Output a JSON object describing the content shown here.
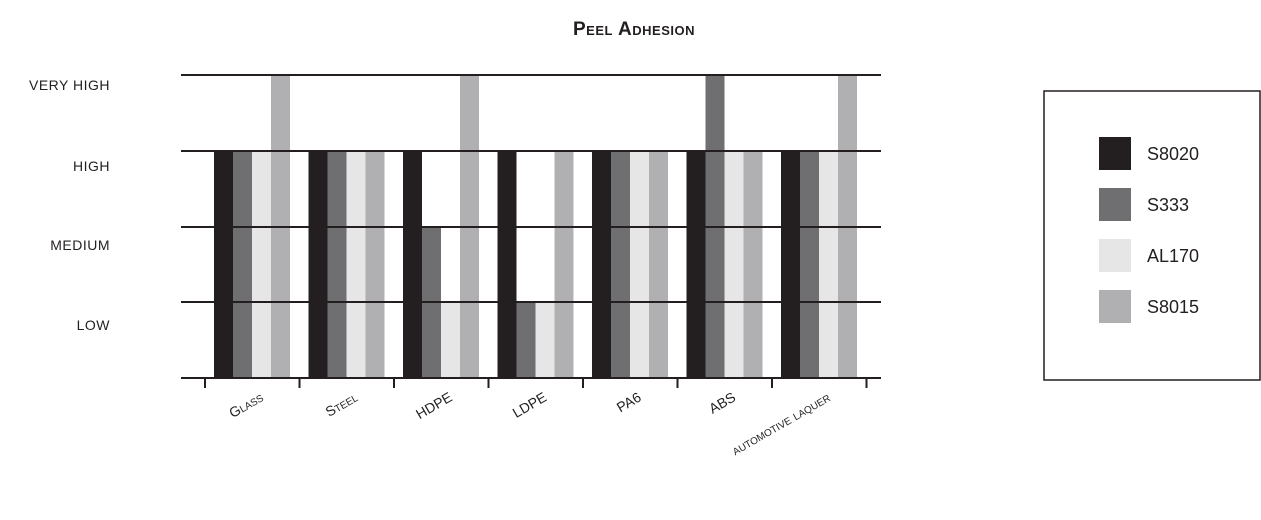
{
  "chart_data": {
    "type": "bar",
    "title": "Peel Adhesion",
    "xlabel": "",
    "ylabel": "",
    "y_levels": [
      "LOW",
      "MEDIUM",
      "HIGH",
      "VERY HIGH"
    ],
    "ylim": [
      0,
      4
    ],
    "categories": [
      "Glass",
      "Steel",
      "HDPE",
      "LDPE",
      "PA6",
      "ABS",
      "automotive laquer"
    ],
    "series": [
      {
        "name": "S8020",
        "color": "#231f20",
        "values": [
          3,
          3,
          3,
          3,
          3,
          3,
          3
        ]
      },
      {
        "name": "S333",
        "color": "#6f6f71",
        "values": [
          3,
          3,
          2,
          1,
          3,
          4,
          3
        ]
      },
      {
        "name": "AL170",
        "color": "#e6e6e7",
        "values": [
          3,
          3,
          1,
          1,
          3,
          3,
          3
        ]
      },
      {
        "name": "S8015",
        "color": "#b0b0b2",
        "values": [
          4,
          3,
          4,
          3,
          3,
          3,
          4
        ]
      }
    ],
    "grid": true,
    "legend_position": "right"
  }
}
